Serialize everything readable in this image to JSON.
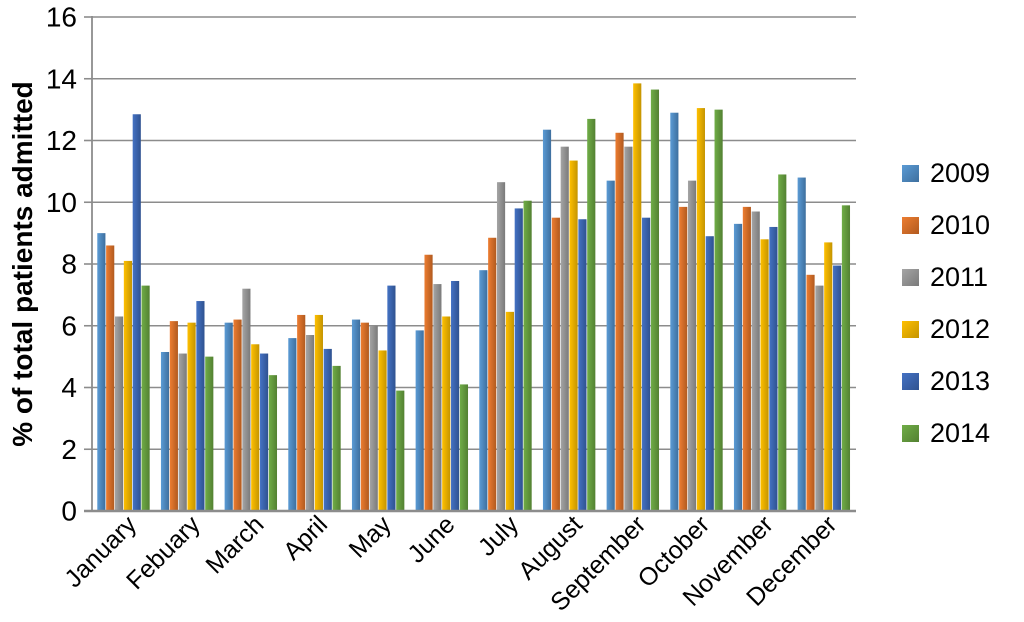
{
  "chart_data": {
    "type": "bar",
    "title": "",
    "xlabel": "",
    "ylabel": "% of total patients admitted",
    "ylim": [
      0,
      16
    ],
    "ytick_step": 2,
    "ytick_labels": [
      "0",
      "2",
      "4",
      "6",
      "8",
      "10",
      "12",
      "14",
      "16"
    ],
    "grid": true,
    "legend_position": "right",
    "axis_color": "#8C8C8C",
    "gridline_color": "#8C8C8C",
    "text_color": "#000000",
    "categories": [
      "January",
      "Febuary",
      "March",
      "April",
      "May",
      "June",
      "July",
      "August",
      "September",
      "October",
      "November",
      "December"
    ],
    "series": [
      {
        "name": "2009",
        "color_light": "#5B9BD5",
        "color_dark": "#3E6F9E",
        "values": [
          9.0,
          5.15,
          6.1,
          5.6,
          6.2,
          5.85,
          7.8,
          12.35,
          10.7,
          12.9,
          9.3,
          10.8
        ]
      },
      {
        "name": "2010",
        "color_light": "#ED7D31",
        "color_dark": "#B15A1F",
        "values": [
          8.6,
          6.15,
          6.2,
          6.35,
          6.1,
          8.3,
          8.85,
          9.5,
          12.25,
          9.85,
          9.85,
          7.65
        ]
      },
      {
        "name": "2011",
        "color_light": "#A5A5A5",
        "color_dark": "#7A7A7A",
        "values": [
          6.3,
          5.1,
          7.2,
          5.7,
          6.0,
          7.35,
          10.65,
          11.8,
          11.8,
          10.7,
          9.7,
          7.3
        ]
      },
      {
        "name": "2012",
        "color_light": "#FFC000",
        "color_dark": "#C49400",
        "values": [
          8.1,
          6.1,
          5.4,
          6.35,
          5.2,
          6.3,
          6.45,
          11.35,
          13.85,
          13.05,
          8.8,
          8.7
        ]
      },
      {
        "name": "2013",
        "color_light": "#4472C4",
        "color_dark": "#2F5290",
        "values": [
          12.85,
          6.8,
          5.1,
          5.25,
          7.3,
          7.45,
          9.8,
          9.45,
          9.5,
          8.9,
          9.2,
          7.95
        ]
      },
      {
        "name": "2014",
        "color_light": "#70AD47",
        "color_dark": "#538132",
        "values": [
          7.3,
          5.0,
          4.4,
          4.7,
          3.9,
          4.1,
          10.05,
          12.7,
          13.65,
          13.0,
          10.9,
          9.9
        ]
      }
    ]
  }
}
